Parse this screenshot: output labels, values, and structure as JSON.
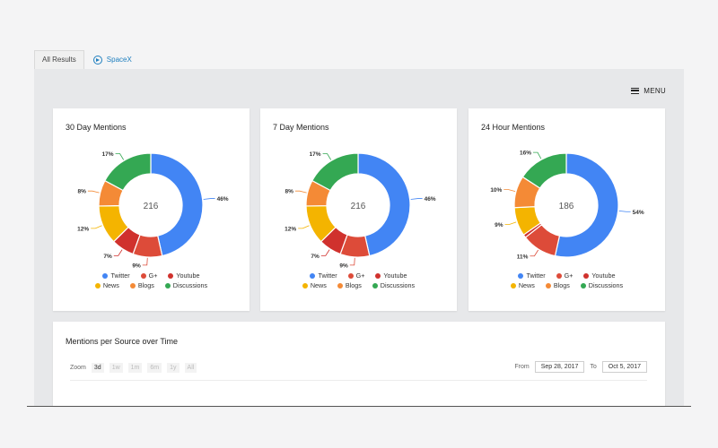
{
  "tabs": [
    {
      "label": "All Results",
      "active": true
    },
    {
      "label": "SpaceX",
      "icon": "play-circle-icon"
    }
  ],
  "menu_label": "MENU",
  "colors": {
    "twitter": "#4285f4",
    "gplus": "#dd4b39",
    "youtube": "#d0312d",
    "news": "#f4b400",
    "blogs": "#f48a36",
    "discussions": "#34a853"
  },
  "legend": {
    "row1": [
      "Twitter",
      "G+",
      "Youtube"
    ],
    "row2": [
      "News",
      "Blogs",
      "Discussions"
    ]
  },
  "chart_data": [
    {
      "type": "pie",
      "title": "30 Day Mentions",
      "center_label": "216",
      "slices": [
        {
          "name": "Twitter",
          "value": 46,
          "label": "46%"
        },
        {
          "name": "G+",
          "value": 9,
          "label": "9%"
        },
        {
          "name": "Youtube",
          "value": 7,
          "label": "7%"
        },
        {
          "name": "News",
          "value": 12,
          "label": "12%"
        },
        {
          "name": "Blogs",
          "value": 8,
          "label": "8%"
        },
        {
          "name": "Discussions",
          "value": 17,
          "label": "17%"
        }
      ]
    },
    {
      "type": "pie",
      "title": "7 Day Mentions",
      "center_label": "216",
      "slices": [
        {
          "name": "Twitter",
          "value": 46,
          "label": "46%"
        },
        {
          "name": "G+",
          "value": 9,
          "label": "9%"
        },
        {
          "name": "Youtube",
          "value": 7,
          "label": "7%"
        },
        {
          "name": "News",
          "value": 12,
          "label": "12%"
        },
        {
          "name": "Blogs",
          "value": 8,
          "label": "8%"
        },
        {
          "name": "Discussions",
          "value": 17,
          "label": "17%"
        }
      ]
    },
    {
      "type": "pie",
      "title": "24 Hour Mentions",
      "center_label": "186",
      "slices": [
        {
          "name": "Twitter",
          "value": 54,
          "label": "54%"
        },
        {
          "name": "G+",
          "value": 11,
          "label": "11%"
        },
        {
          "name": "Youtube",
          "value": 1,
          "label": ""
        },
        {
          "name": "News",
          "value": 9,
          "label": "9%"
        },
        {
          "name": "Blogs",
          "value": 10,
          "label": "10%"
        },
        {
          "name": "Discussions",
          "value": 16,
          "label": "16%"
        }
      ]
    }
  ],
  "timeline": {
    "title": "Mentions per Source over Time",
    "zoom_label": "Zoom",
    "zoom_options": [
      "3d",
      "1w",
      "1m",
      "6m",
      "1y",
      "All"
    ],
    "active_zoom": "3d",
    "from_label": "From",
    "from_date": "Sep 28, 2017",
    "to_label": "To",
    "to_date": "Oct 5, 2017"
  }
}
